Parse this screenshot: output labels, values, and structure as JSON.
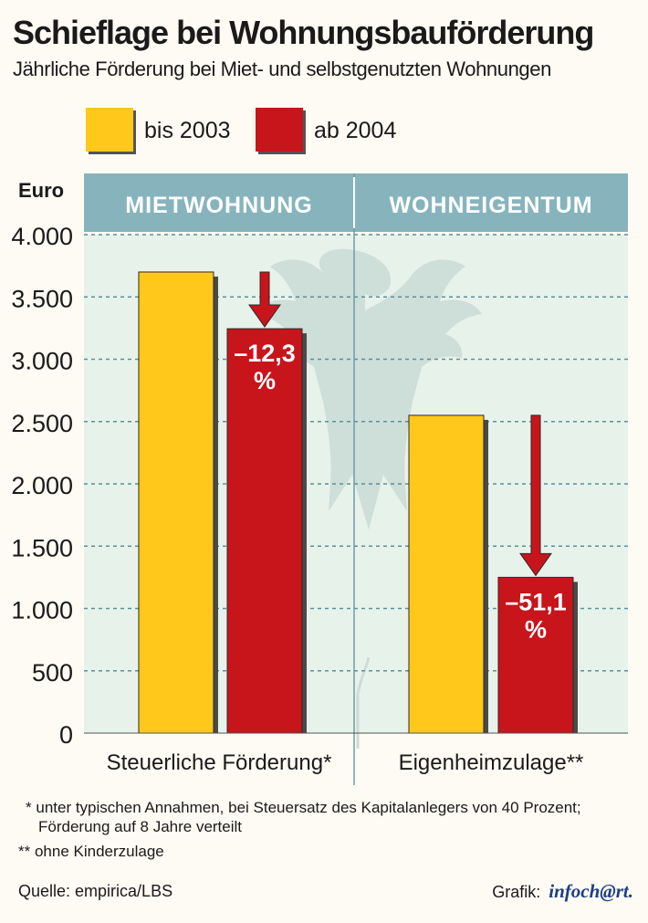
{
  "title": "Schieflage bei Wohnungsbauförderung",
  "subtitle": "Jährliche Förderung bei Miet- und selbstgenutzten Wohnungen",
  "legend": [
    {
      "label": "bis 2003",
      "color": "#ffc81a"
    },
    {
      "label": "ab 2004",
      "color": "#c8141b"
    }
  ],
  "footnotes": [
    {
      "mark": "*",
      "text": "unter typischen Annahmen, bei Steuersatz des Kapitalanlegers von 40 Prozent;",
      "text2": "Förderung auf 8 Jahre verteilt"
    },
    {
      "mark": "**",
      "text": "ohne Kinderzulage"
    }
  ],
  "source": "Quelle: empirica/LBS",
  "credit": {
    "prefix": "Grafik:",
    "logo": "infoch@rt."
  },
  "chart_data": {
    "type": "bar",
    "ylabel": "Euro",
    "ylim": [
      0,
      4000
    ],
    "yticks": [
      0,
      500,
      1000,
      1500,
      2000,
      2500,
      3000,
      3500,
      4000
    ],
    "ytick_labels": [
      "0",
      "500",
      "1.000",
      "1.500",
      "2.000",
      "2.500",
      "3.000",
      "3.500",
      "4.000"
    ],
    "grid": true,
    "panels": [
      "MIETWOHNUNG",
      "WOHNEIGENTUM"
    ],
    "categories": [
      "Steuerliche Förderung*",
      "Eigenheimzulage**"
    ],
    "series": [
      {
        "name": "bis 2003",
        "values": [
          3700,
          2550
        ]
      },
      {
        "name": "ab 2004",
        "values": [
          3245,
          1250
        ]
      }
    ],
    "annotations": [
      {
        "category": 0,
        "line1": "–12,3",
        "line2": "%"
      },
      {
        "category": 1,
        "line1": "–51,1",
        "line2": "%"
      }
    ]
  }
}
